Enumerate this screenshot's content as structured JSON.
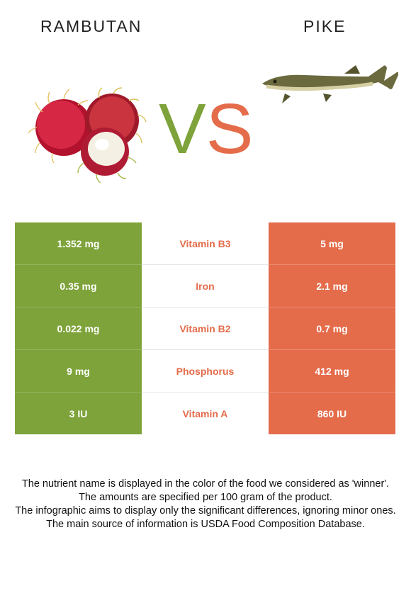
{
  "header": {
    "left_food": "RAMBUTAN",
    "right_food": "PIKE",
    "vs_v": "V",
    "vs_s": "S"
  },
  "colors": {
    "left_winner": "#7ea33a",
    "right_winner": "#e46c4b"
  },
  "rows": [
    {
      "left": "1.352 mg",
      "nutrient": "Vitamin B3",
      "right": "5 mg"
    },
    {
      "left": "0.35 mg",
      "nutrient": "Iron",
      "right": "2.1 mg"
    },
    {
      "left": "0.022 mg",
      "nutrient": "Vitamin B2",
      "right": "0.7 mg"
    },
    {
      "left": "9 mg",
      "nutrient": "Phosphorus",
      "right": "412 mg"
    },
    {
      "left": "3 IU",
      "nutrient": "Vitamin A",
      "right": "860 IU"
    }
  ],
  "footer": {
    "line1": "The nutrient name is displayed in the color of the food we considered as 'winner'.",
    "line2": "The amounts are specified per 100 gram of the product.",
    "line3": "The infographic aims to display only the significant differences, ignoring minor ones.",
    "line4": "The main source of information is USDA Food Composition Database."
  }
}
